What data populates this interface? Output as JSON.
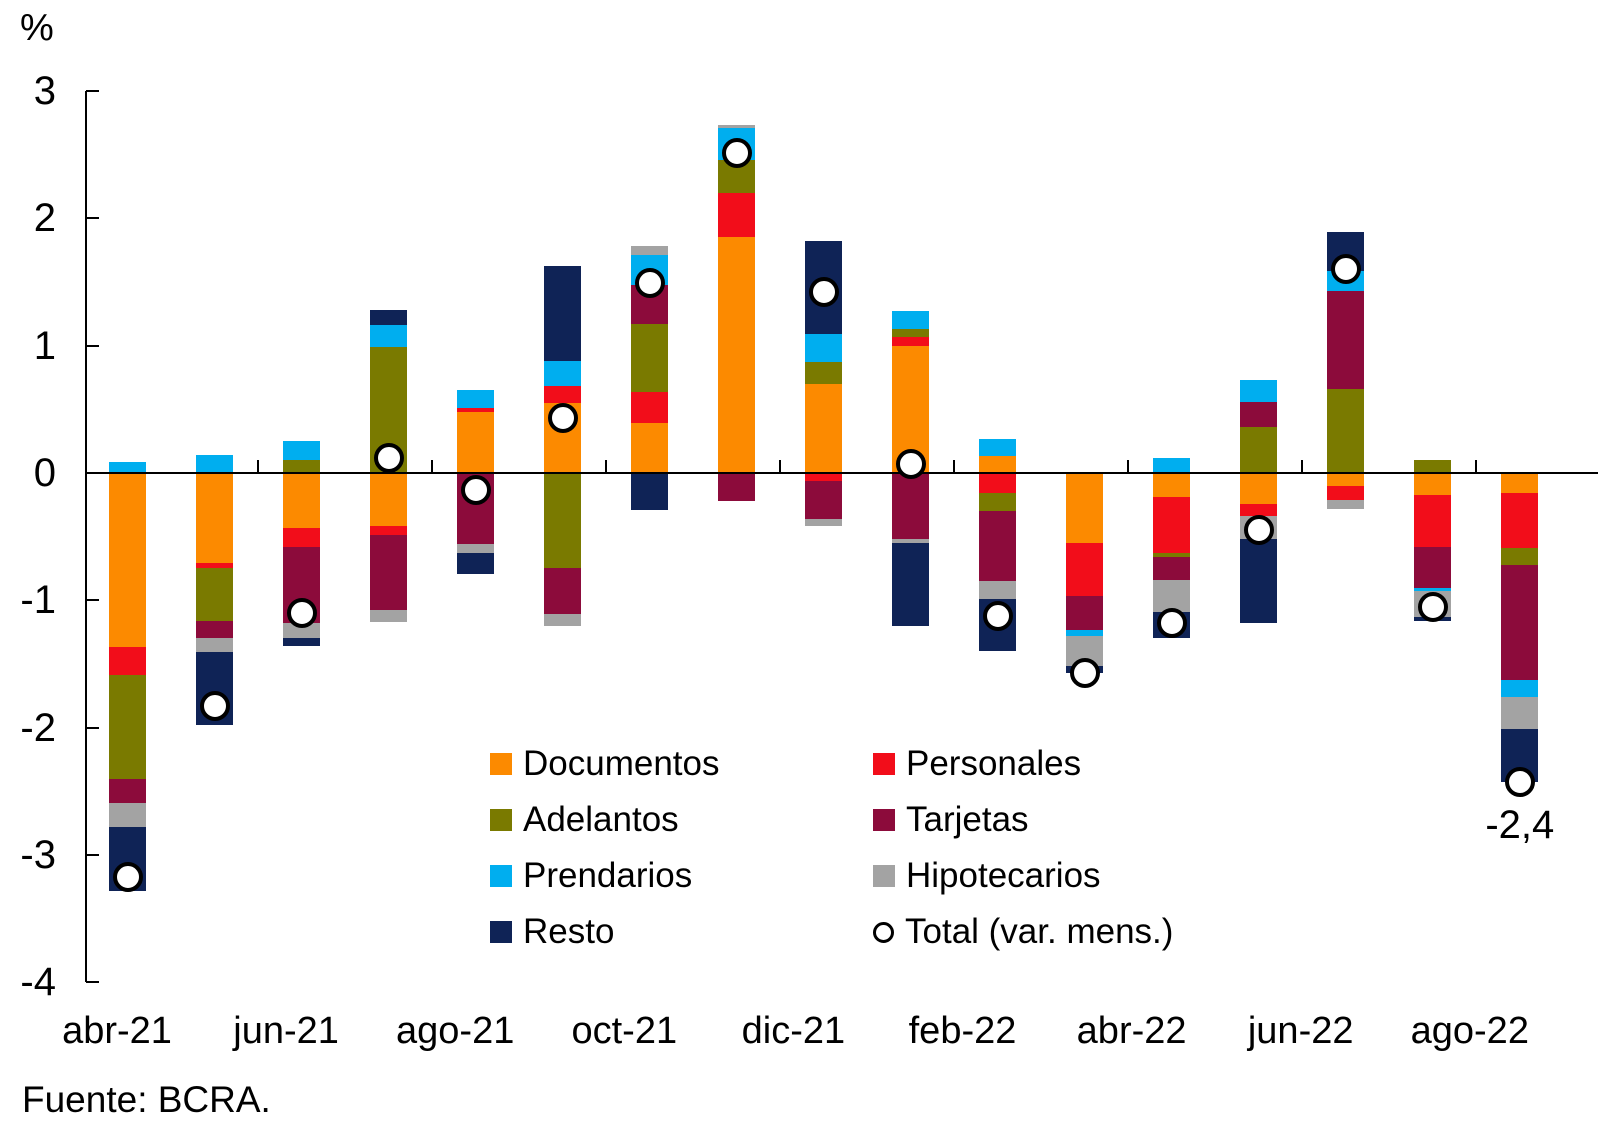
{
  "source": "Fuente: BCRA.",
  "chart_data": {
    "type": "bar",
    "stacked": true,
    "ylabel": "%",
    "ylim": [
      -4,
      3
    ],
    "y_ticks": [
      3,
      2,
      1,
      0,
      -1,
      -2,
      -3,
      -4
    ],
    "grid": false,
    "legend_position": "inside-bottom-center",
    "categories": [
      "abr-21",
      "may-21",
      "jun-21",
      "jul-21",
      "ago-21",
      "sep-21",
      "oct-21",
      "nov-21",
      "dic-21",
      "ene-22",
      "feb-22",
      "mar-22",
      "abr-22",
      "may-22",
      "jun-22",
      "jul-22",
      "ago-22"
    ],
    "x_tick_labels": [
      "abr-21",
      "jun-21",
      "ago-21",
      "oct-21",
      "dic-21",
      "feb-22",
      "abr-22",
      "jun-22",
      "ago-22"
    ],
    "series": [
      {
        "name": "Documentos",
        "color": "#FC8A00",
        "values": [
          -1.37,
          -0.71,
          -0.43,
          -0.42,
          0.48,
          0.55,
          0.39,
          1.85,
          0.7,
          1.0,
          0.13,
          -0.55,
          -0.19,
          -0.24,
          -0.1,
          -0.17,
          -0.16
        ]
      },
      {
        "name": "Personales",
        "color": "#F20D1A",
        "values": [
          -0.22,
          -0.04,
          -0.15,
          -0.07,
          0.03,
          0.13,
          0.25,
          0.35,
          -0.06,
          0.07,
          -0.16,
          -0.42,
          -0.44,
          -0.1,
          -0.11,
          -0.41,
          -0.43
        ]
      },
      {
        "name": "Adelantos",
        "color": "#7A7A00",
        "values": [
          -0.81,
          -0.41,
          0.1,
          0.99,
          0,
          -0.75,
          0.53,
          0.26,
          0.17,
          0.06,
          -0.14,
          0,
          -0.03,
          0.36,
          0.66,
          0.1,
          -0.13
        ]
      },
      {
        "name": "Tarjetas",
        "color": "#8C0B3B",
        "values": [
          -0.19,
          -0.14,
          -0.6,
          -0.59,
          -0.56,
          -0.36,
          0.31,
          -0.22,
          -0.3,
          -0.52,
          -0.55,
          -0.26,
          -0.18,
          0.2,
          0.77,
          -0.32,
          -0.91
        ]
      },
      {
        "name": "Prendarios",
        "color": "#00AEEF",
        "values": [
          0.09,
          0.14,
          0.15,
          0.17,
          0.14,
          0.2,
          0.23,
          0.25,
          0.22,
          0.14,
          0.14,
          -0.05,
          0.12,
          0.17,
          0.16,
          -0.03,
          -0.13
        ]
      },
      {
        "name": "Hipotecarios",
        "color": "#A3A3A3",
        "values": [
          -0.19,
          -0.11,
          -0.12,
          -0.09,
          -0.07,
          -0.09,
          0.07,
          0.02,
          -0.06,
          -0.03,
          -0.14,
          -0.24,
          -0.25,
          -0.18,
          -0.07,
          -0.2,
          -0.25
        ]
      },
      {
        "name": "Resto",
        "color": "#0F2356",
        "values": [
          -0.5,
          -0.57,
          -0.06,
          0.12,
          -0.16,
          0.75,
          -0.29,
          0,
          0.73,
          -0.65,
          -0.41,
          -0.05,
          -0.21,
          -0.66,
          0.3,
          -0.03,
          -0.42
        ]
      }
    ],
    "total": {
      "name": "Total (var. mens.)",
      "marker": "white-circle-black-outline",
      "values": [
        -3.17,
        -1.83,
        -1.1,
        0.12,
        -0.13,
        0.43,
        1.49,
        2.51,
        1.42,
        0.07,
        -1.12,
        -1.57,
        -1.18,
        -0.45,
        1.6,
        -1.05,
        -2.43
      ]
    },
    "annotation": {
      "text": "-2,4",
      "category": "ago-22",
      "value": -2.4
    }
  }
}
